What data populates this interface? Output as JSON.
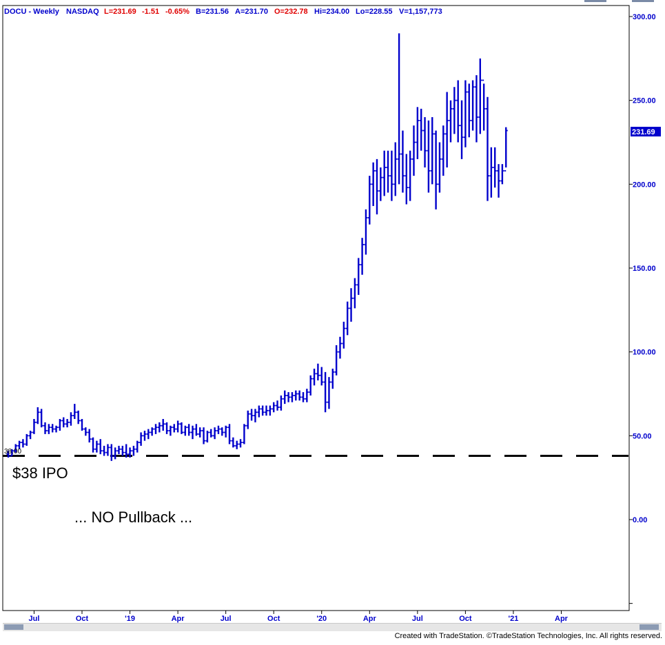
{
  "header": {
    "symbol": "DOCU - Weekly",
    "exchange": "NASDAQ",
    "last": "L=231.69",
    "change": "-1.51",
    "change_pct": "-0.65%",
    "bid": "B=231.56",
    "ask": "A=231.70",
    "open": "O=232.78",
    "high": "Hi=234.00",
    "low": "Lo=228.55",
    "volume": "V=1,157,773"
  },
  "colors": {
    "bars": "#0000cc",
    "header_red": "#e00000",
    "axis_text": "#0000cc",
    "ipo_line": "#000000"
  },
  "price_label": "231.69",
  "left_price_label": "38.00",
  "footer": {
    "credit": "Created with TradeStation. ©TradeStation Technologies, Inc. All rights reserved."
  },
  "chart_data": {
    "type": "ohlc",
    "ylim": [
      -50,
      300
    ],
    "y_ticks": [
      {
        "label": "300.00",
        "value": 300
      },
      {
        "label": "250.00",
        "value": 250
      },
      {
        "label": "200.00",
        "value": 200
      },
      {
        "label": "150.00",
        "value": 150
      },
      {
        "label": "100.00",
        "value": 100
      },
      {
        "label": "50.00",
        "value": 50
      },
      {
        "label": "0.00",
        "value": 0
      }
    ],
    "x_ticks": [
      {
        "label": "Jul",
        "week": 7
      },
      {
        "label": "Oct",
        "week": 20
      },
      {
        "label": "'19",
        "week": 33
      },
      {
        "label": "Apr",
        "week": 46
      },
      {
        "label": "Jul",
        "week": 59
      },
      {
        "label": "Oct",
        "week": 72
      },
      {
        "label": "'20",
        "week": 85
      },
      {
        "label": "Apr",
        "week": 98
      },
      {
        "label": "Jul",
        "week": 111
      },
      {
        "label": "Oct",
        "week": 124
      },
      {
        "label": "'21",
        "week": 137
      },
      {
        "label": "Apr",
        "week": 150
      }
    ],
    "reference_line": {
      "value": 38
    },
    "annotations": [
      {
        "text": "$38 IPO"
      },
      {
        "text": "... NO Pullback ..."
      }
    ],
    "bars": [
      [
        39,
        41,
        37,
        38
      ],
      [
        38,
        42,
        38,
        41
      ],
      [
        41,
        45,
        40,
        44
      ],
      [
        44,
        47,
        42,
        46
      ],
      [
        46,
        48,
        43,
        45
      ],
      [
        45,
        51,
        44,
        50
      ],
      [
        50,
        53,
        48,
        52
      ],
      [
        52,
        60,
        51,
        58
      ],
      [
        58,
        67,
        57,
        64
      ],
      [
        64,
        66,
        55,
        56
      ],
      [
        56,
        58,
        51,
        53
      ],
      [
        53,
        57,
        51,
        55
      ],
      [
        55,
        57,
        52,
        54
      ],
      [
        54,
        56,
        52,
        55
      ],
      [
        55,
        60,
        53,
        59
      ],
      [
        59,
        61,
        55,
        57
      ],
      [
        57,
        60,
        55,
        58
      ],
      [
        58,
        64,
        56,
        62
      ],
      [
        62,
        69,
        60,
        64
      ],
      [
        64,
        65,
        57,
        59
      ],
      [
        59,
        60,
        53,
        54
      ],
      [
        54,
        55,
        50,
        52
      ],
      [
        52,
        54,
        46,
        48
      ],
      [
        48,
        49,
        40,
        42
      ],
      [
        42,
        47,
        40,
        45
      ],
      [
        45,
        48,
        39,
        41
      ],
      [
        41,
        44,
        38,
        40
      ],
      [
        40,
        45,
        38,
        43
      ],
      [
        43,
        45,
        35,
        38
      ],
      [
        38,
        43,
        36,
        41
      ],
      [
        41,
        44,
        39,
        42
      ],
      [
        42,
        44,
        38,
        40
      ],
      [
        40,
        45,
        37,
        39
      ],
      [
        39,
        43,
        37,
        41
      ],
      [
        41,
        44,
        38,
        42
      ],
      [
        42,
        47,
        40,
        46
      ],
      [
        46,
        52,
        44,
        50
      ],
      [
        50,
        53,
        47,
        51
      ],
      [
        51,
        54,
        48,
        52
      ],
      [
        52,
        55,
        50,
        54
      ],
      [
        54,
        57,
        51,
        55
      ],
      [
        55,
        58,
        52,
        56
      ],
      [
        56,
        60,
        53,
        57
      ],
      [
        57,
        58,
        51,
        53
      ],
      [
        53,
        56,
        50,
        55
      ],
      [
        55,
        57,
        52,
        54
      ],
      [
        54,
        59,
        52,
        57
      ],
      [
        57,
        58,
        51,
        52
      ],
      [
        52,
        56,
        50,
        55
      ],
      [
        55,
        57,
        50,
        52
      ],
      [
        52,
        56,
        48,
        54
      ],
      [
        54,
        57,
        50,
        51
      ],
      [
        51,
        55,
        49,
        53
      ],
      [
        53,
        55,
        45,
        47
      ],
      [
        47,
        53,
        46,
        52
      ],
      [
        52,
        54,
        49,
        50
      ],
      [
        50,
        55,
        48,
        53
      ],
      [
        53,
        56,
        51,
        54
      ],
      [
        54,
        55,
        50,
        52
      ],
      [
        52,
        56,
        49,
        55
      ],
      [
        55,
        57,
        45,
        47
      ],
      [
        47,
        49,
        43,
        44
      ],
      [
        44,
        47,
        42,
        45
      ],
      [
        45,
        48,
        43,
        46
      ],
      [
        46,
        57,
        45,
        56
      ],
      [
        56,
        65,
        54,
        63
      ],
      [
        63,
        66,
        59,
        62
      ],
      [
        62,
        66,
        58,
        64
      ],
      [
        64,
        68,
        61,
        66
      ],
      [
        66,
        68,
        62,
        64
      ],
      [
        64,
        68,
        62,
        65
      ],
      [
        65,
        68,
        62,
        66
      ],
      [
        66,
        70,
        64,
        68
      ],
      [
        68,
        71,
        65,
        67
      ],
      [
        67,
        74,
        65,
        72
      ],
      [
        72,
        77,
        69,
        74
      ],
      [
        74,
        76,
        70,
        73
      ],
      [
        73,
        76,
        70,
        74
      ],
      [
        74,
        77,
        71,
        75
      ],
      [
        75,
        77,
        71,
        73
      ],
      [
        73,
        76,
        70,
        72
      ],
      [
        72,
        78,
        70,
        76
      ],
      [
        76,
        86,
        74,
        84
      ],
      [
        84,
        90,
        80,
        87
      ],
      [
        87,
        93,
        83,
        86
      ],
      [
        86,
        91,
        80,
        82
      ],
      [
        82,
        88,
        64,
        70
      ],
      [
        70,
        85,
        66,
        82
      ],
      [
        82,
        90,
        78,
        88
      ],
      [
        88,
        104,
        86,
        100
      ],
      [
        100,
        109,
        96,
        105
      ],
      [
        105,
        118,
        102,
        114
      ],
      [
        114,
        130,
        110,
        126
      ],
      [
        126,
        138,
        118,
        132
      ],
      [
        132,
        144,
        126,
        140
      ],
      [
        140,
        156,
        134,
        152
      ],
      [
        152,
        168,
        146,
        164
      ],
      [
        164,
        185,
        158,
        180
      ],
      [
        180,
        205,
        176,
        200
      ],
      [
        200,
        213,
        187,
        208
      ],
      [
        208,
        215,
        182,
        196
      ],
      [
        196,
        210,
        190,
        204
      ],
      [
        204,
        220,
        193,
        210
      ],
      [
        210,
        220,
        195,
        205
      ],
      [
        205,
        220,
        190,
        200
      ],
      [
        200,
        225,
        193,
        215
      ],
      [
        215,
        290,
        200,
        218
      ],
      [
        218,
        232,
        195,
        205
      ],
      [
        205,
        218,
        188,
        198
      ],
      [
        198,
        220,
        190,
        215
      ],
      [
        215,
        235,
        205,
        225
      ],
      [
        225,
        246,
        215,
        238
      ],
      [
        238,
        245,
        220,
        232
      ],
      [
        232,
        240,
        210,
        220
      ],
      [
        220,
        238,
        195,
        208
      ],
      [
        208,
        240,
        200,
        230
      ],
      [
        230,
        232,
        185,
        200
      ],
      [
        200,
        225,
        195,
        215
      ],
      [
        215,
        235,
        205,
        230
      ],
      [
        230,
        255,
        210,
        238
      ],
      [
        238,
        250,
        225,
        245
      ],
      [
        245,
        258,
        230,
        250
      ],
      [
        250,
        262,
        225,
        235
      ],
      [
        235,
        250,
        215,
        228
      ],
      [
        228,
        262,
        222,
        255
      ],
      [
        255,
        260,
        228,
        238
      ],
      [
        238,
        262,
        232,
        258
      ],
      [
        258,
        265,
        225,
        240
      ],
      [
        240,
        275,
        230,
        262
      ],
      [
        262,
        260,
        232,
        245
      ],
      [
        245,
        252,
        190,
        205
      ],
      [
        205,
        222,
        192,
        210
      ],
      [
        210,
        222,
        198,
        208
      ],
      [
        208,
        212,
        192,
        202
      ],
      [
        202,
        212,
        200,
        208
      ],
      [
        208,
        234,
        210,
        232
      ]
    ]
  }
}
